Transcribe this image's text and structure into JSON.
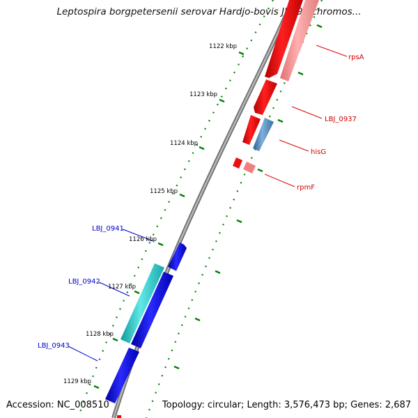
{
  "title": "Leptospira borgpetersenii serovar Hardjo-bovis JB197 chromos...",
  "footer": {
    "accession": "Accession: NC_008510",
    "topology": "Topology: circular; Length: 3,576,473 bp; Genes: 2,687"
  },
  "ticks": [
    "1122 kbp",
    "1123 kbp",
    "1124 kbp",
    "1125 kbp",
    "1126 kbp",
    "1127 kbp",
    "1128 kbp",
    "1129 kbp"
  ],
  "gene_labels": [
    {
      "name": "rpsA",
      "color": "#cc0000"
    },
    {
      "name": "LBJ_0937",
      "color": "#cc0000"
    },
    {
      "name": "hisG",
      "color": "#cc0000"
    },
    {
      "name": "rpmF",
      "color": "#cc0000"
    },
    {
      "name": "LBJ_0941",
      "color": "#0000cc"
    },
    {
      "name": "LBJ_0942",
      "color": "#0000cc"
    },
    {
      "name": "LBJ_0943",
      "color": "#0000cc"
    }
  ],
  "colors": {
    "forward_cds": "#ff0000",
    "forward_cds_light": "#f08080",
    "forward_cds_steel": "#4682b4",
    "reverse_cds": "#0000ee",
    "reverse_cds_cyan": "#20c0c0",
    "backbone": "#808080",
    "tick_dots": "#008000"
  }
}
